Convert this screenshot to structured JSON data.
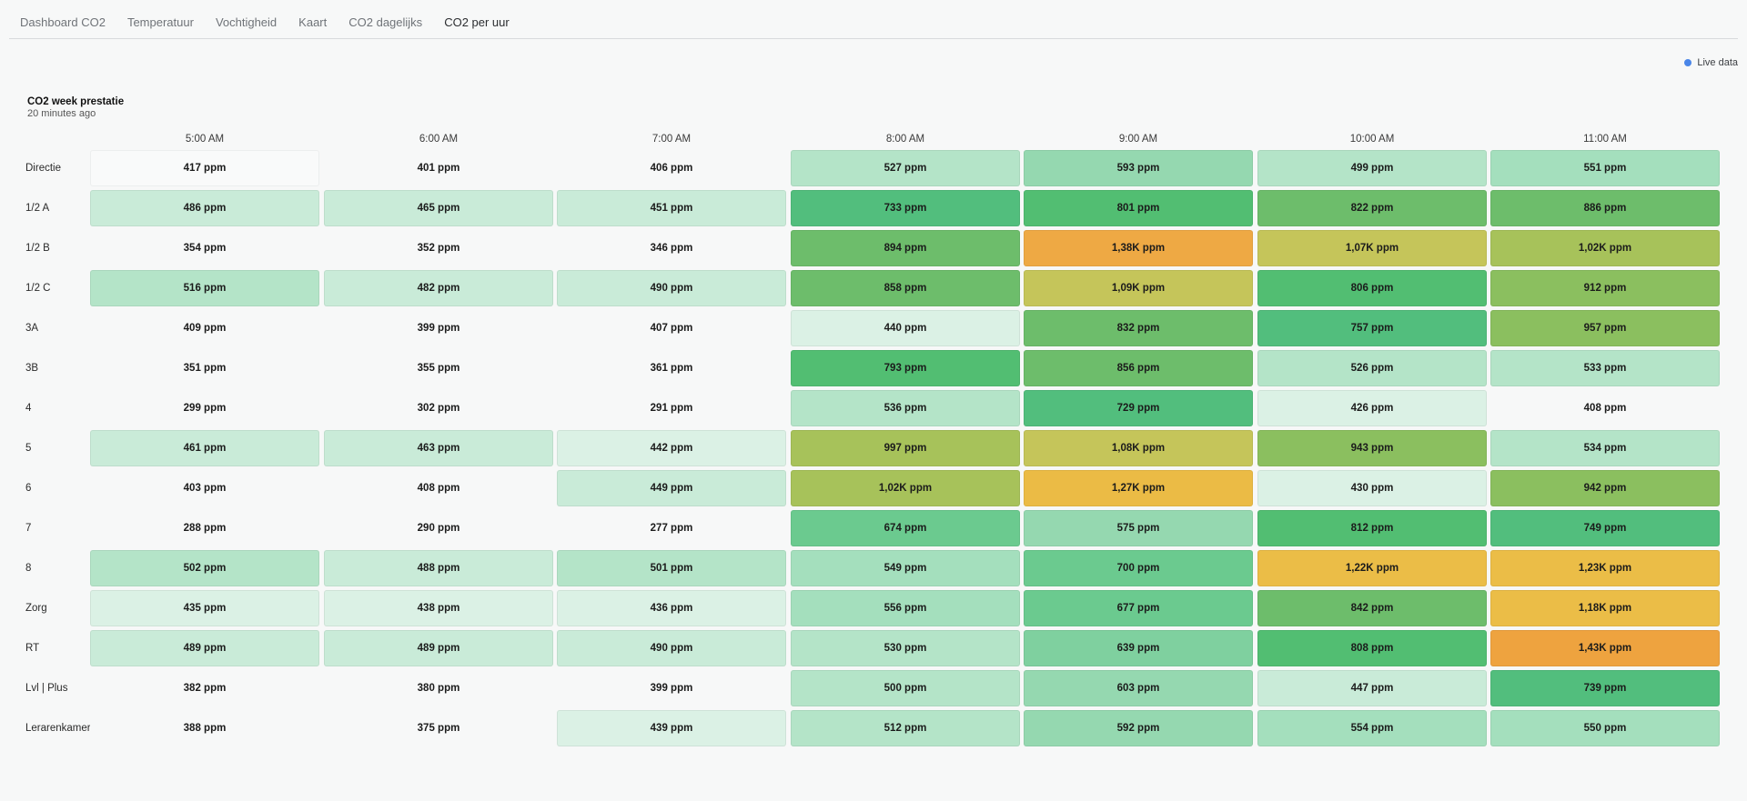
{
  "tabs": [
    {
      "label": "Dashboard CO2",
      "active": false
    },
    {
      "label": "Temperatuur",
      "active": false
    },
    {
      "label": "Vochtigheid",
      "active": false
    },
    {
      "label": "Kaart",
      "active": false
    },
    {
      "label": "CO2 dagelijks",
      "active": false
    },
    {
      "label": "CO2 per uur",
      "active": true
    }
  ],
  "live_indicator": {
    "label": "Live data",
    "color": "#4a86e8"
  },
  "panel": {
    "title": "CO2 week prestatie",
    "subtitle": "20 minutes ago"
  },
  "heatmap": {
    "columns": [
      "5:00 AM",
      "6:00 AM",
      "7:00 AM",
      "8:00 AM",
      "9:00 AM",
      "10:00 AM",
      "11:00 AM"
    ],
    "unit": "ppm",
    "rows": [
      {
        "name": "Directie",
        "cells": [
          "417 ppm",
          "401 ppm",
          "406 ppm",
          "527 ppm",
          "593 ppm",
          "499 ppm",
          "551 ppm"
        ],
        "colors": [
          "#f9fafa",
          "#f7f8f8",
          "#f7f8f8",
          "#b4e4c8",
          "#95d8b0",
          "#b4e4c8",
          "#a4dfbd"
        ]
      },
      {
        "name": "1/2 A",
        "cells": [
          "486 ppm",
          "465 ppm",
          "451 ppm",
          "733 ppm",
          "801 ppm",
          "822 ppm",
          "886 ppm"
        ],
        "colors": [
          "#c9ebd8",
          "#c9ebd8",
          "#c9ebd8",
          "#52be7d",
          "#52be72",
          "#6dbd6b",
          "#6dbd6b"
        ]
      },
      {
        "name": "1/2 B",
        "cells": [
          "354 ppm",
          "352 ppm",
          "346 ppm",
          "894 ppm",
          "1,38K ppm",
          "1,07K ppm",
          "1,02K ppm"
        ],
        "colors": [
          "#f7f8f8",
          "#f7f8f8",
          "#f7f8f8",
          "#6dbd6b",
          "#eea944",
          "#c5c55a",
          "#a7c25a"
        ]
      },
      {
        "name": "1/2 C",
        "cells": [
          "516 ppm",
          "482 ppm",
          "490 ppm",
          "858 ppm",
          "1,09K ppm",
          "806 ppm",
          "912 ppm"
        ],
        "colors": [
          "#b4e4c8",
          "#c9ebd8",
          "#c9ebd8",
          "#6dbd6b",
          "#c5c55a",
          "#52be72",
          "#8bbf5f"
        ]
      },
      {
        "name": "3A",
        "cells": [
          "409 ppm",
          "399 ppm",
          "407 ppm",
          "440 ppm",
          "832 ppm",
          "757 ppm",
          "957 ppm"
        ],
        "colors": [
          "#f7f8f8",
          "#f7f8f8",
          "#f7f8f8",
          "#dbf1e5",
          "#6dbd6b",
          "#52be7d",
          "#8bbf5f"
        ]
      },
      {
        "name": "3B",
        "cells": [
          "351 ppm",
          "355 ppm",
          "361 ppm",
          "793 ppm",
          "856 ppm",
          "526 ppm",
          "533 ppm"
        ],
        "colors": [
          "#f7f8f8",
          "#f7f8f8",
          "#f7f8f8",
          "#52be72",
          "#6dbd6b",
          "#b4e4c8",
          "#b4e4c8"
        ]
      },
      {
        "name": "4",
        "cells": [
          "299 ppm",
          "302 ppm",
          "291 ppm",
          "536 ppm",
          "729 ppm",
          "426 ppm",
          "408 ppm"
        ],
        "colors": [
          "#f7f8f8",
          "#f7f8f8",
          "#f7f8f8",
          "#b4e4c8",
          "#52be7d",
          "#dbf1e5",
          "#f7f8f8"
        ]
      },
      {
        "name": "5",
        "cells": [
          "461 ppm",
          "463 ppm",
          "442 ppm",
          "997 ppm",
          "1,08K ppm",
          "943 ppm",
          "534 ppm"
        ],
        "colors": [
          "#c9ebd8",
          "#c9ebd8",
          "#dbf1e5",
          "#a7c25a",
          "#c5c55a",
          "#8bbf5f",
          "#b4e4c8"
        ]
      },
      {
        "name": "6",
        "cells": [
          "403 ppm",
          "408 ppm",
          "449 ppm",
          "1,02K ppm",
          "1,27K ppm",
          "430 ppm",
          "942 ppm"
        ],
        "colors": [
          "#f7f8f8",
          "#f7f8f8",
          "#c9ebd8",
          "#a7c25a",
          "#ebbb45",
          "#dbf1e5",
          "#8bbf5f"
        ]
      },
      {
        "name": "7",
        "cells": [
          "288 ppm",
          "290 ppm",
          "277 ppm",
          "674 ppm",
          "575 ppm",
          "812 ppm",
          "749 ppm"
        ],
        "colors": [
          "#f7f8f8",
          "#f7f8f8",
          "#f7f8f8",
          "#6bca8f",
          "#95d8b0",
          "#52be72",
          "#52be7d"
        ]
      },
      {
        "name": "8",
        "cells": [
          "502 ppm",
          "488 ppm",
          "501 ppm",
          "549 ppm",
          "700 ppm",
          "1,22K ppm",
          "1,23K ppm"
        ],
        "colors": [
          "#b4e4c8",
          "#c9ebd8",
          "#b4e4c8",
          "#a4dfbd",
          "#6bca8f",
          "#ebbd47",
          "#ebbd47"
        ]
      },
      {
        "name": "Zorg",
        "cells": [
          "435 ppm",
          "438 ppm",
          "436 ppm",
          "556 ppm",
          "677 ppm",
          "842 ppm",
          "1,18K ppm"
        ],
        "colors": [
          "#dbf1e5",
          "#dbf1e5",
          "#dbf1e5",
          "#a4dfbd",
          "#6bca8f",
          "#6dbd6b",
          "#ebbd47"
        ]
      },
      {
        "name": "RT",
        "cells": [
          "489 ppm",
          "489 ppm",
          "490 ppm",
          "530 ppm",
          "639 ppm",
          "808 ppm",
          "1,43K ppm"
        ],
        "colors": [
          "#c9ebd8",
          "#c9ebd8",
          "#c9ebd8",
          "#b4e4c8",
          "#7fd09f",
          "#52be72",
          "#eea33f"
        ]
      },
      {
        "name": "Lvl | Plus",
        "cells": [
          "382 ppm",
          "380 ppm",
          "399 ppm",
          "500 ppm",
          "603 ppm",
          "447 ppm",
          "739 ppm"
        ],
        "colors": [
          "#f7f8f8",
          "#f7f8f8",
          "#f7f8f8",
          "#b4e4c8",
          "#95d8b0",
          "#c9ebd8",
          "#52be7d"
        ]
      },
      {
        "name": "Lerarenkamer",
        "cells": [
          "388 ppm",
          "375 ppm",
          "439 ppm",
          "512 ppm",
          "592 ppm",
          "554 ppm",
          "550 ppm"
        ],
        "colors": [
          "#f7f8f8",
          "#f7f8f8",
          "#dbf1e5",
          "#b4e4c8",
          "#95d8b0",
          "#a4dfbd",
          "#a4dfbd"
        ]
      }
    ]
  }
}
